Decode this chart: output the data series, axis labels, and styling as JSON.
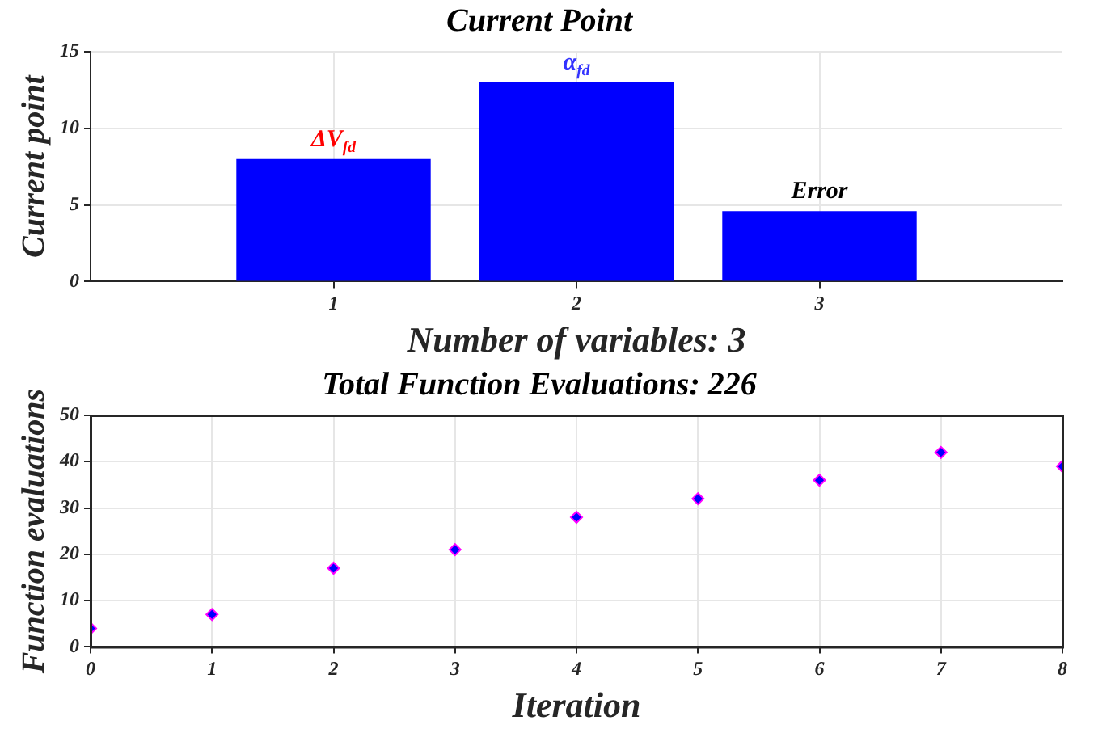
{
  "chart_data": [
    {
      "type": "bar",
      "title": "Current Point",
      "xlabel": "Number of variables: 3",
      "ylabel": "Current point",
      "x": [
        1,
        2,
        3
      ],
      "values": [
        8,
        13,
        4.6
      ],
      "color": "#0000ff",
      "xlim": [
        0,
        4
      ],
      "xticks": [
        1,
        2,
        3
      ],
      "ylim": [
        0,
        15
      ],
      "yticks": [
        0,
        5,
        10,
        15
      ],
      "grid": true,
      "annotations": [
        {
          "text": "ΔV$_{fd}$",
          "x": 1,
          "y": 8
        },
        {
          "text": "α$_{fd}$",
          "x": 2,
          "y": 13
        },
        {
          "text": "Error",
          "x": 3,
          "y": 4.6
        }
      ]
    },
    {
      "type": "scatter",
      "title": "Total Function Evaluations: 226",
      "xlabel": "Iteration",
      "ylabel": "Function evaluations",
      "x": [
        0,
        1,
        2,
        3,
        4,
        5,
        6,
        7,
        8
      ],
      "values": [
        4,
        7,
        17,
        21,
        28,
        32,
        36,
        42,
        39
      ],
      "color": "#0000ff",
      "xlim": [
        0,
        8
      ],
      "xticks": [
        0,
        1,
        2,
        3,
        4,
        5,
        6,
        7,
        8
      ],
      "ylim": [
        0,
        50
      ],
      "yticks": [
        0,
        10,
        20,
        30,
        40,
        50
      ],
      "grid": true,
      "marker": "diamond"
    }
  ]
}
